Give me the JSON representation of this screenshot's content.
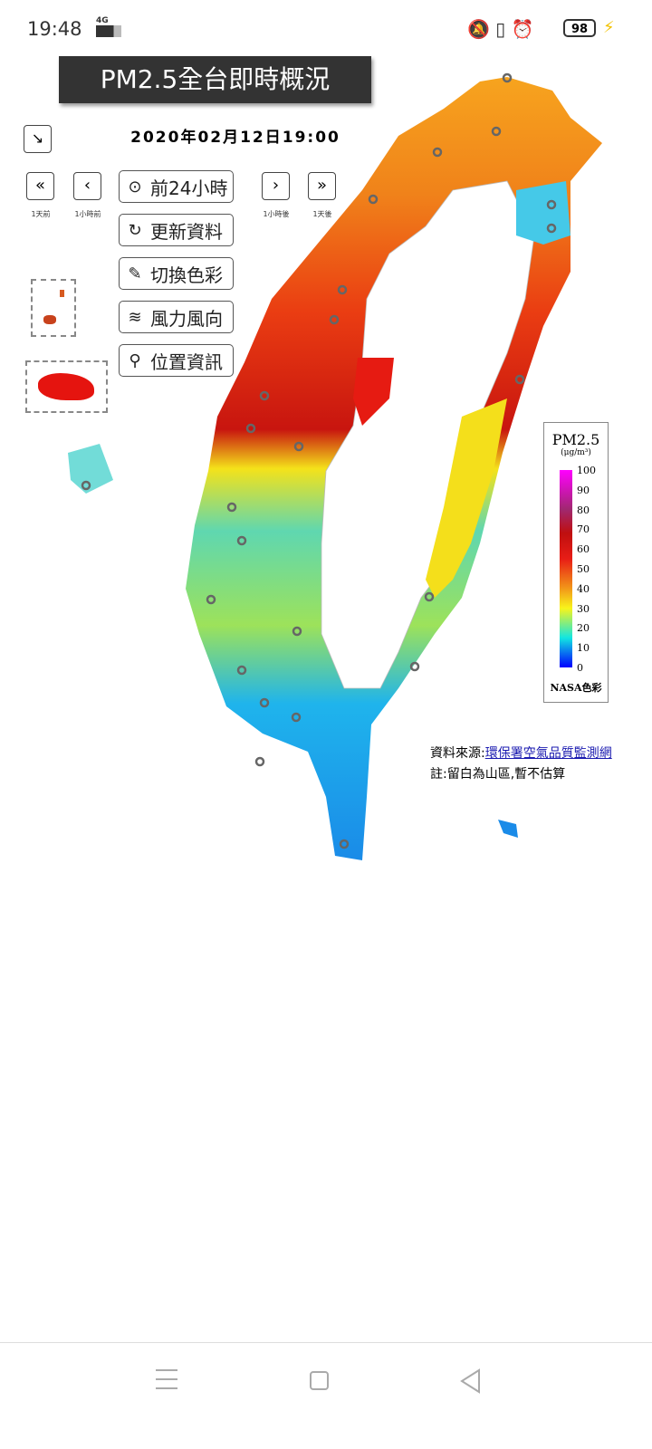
{
  "status_bar": {
    "time": "19:48",
    "network": "4G",
    "battery": "98"
  },
  "header": {
    "title": "PM2.5全台即時概況",
    "datetime": "2020年02月12日19:00"
  },
  "nav": {
    "day_back": "1天前",
    "hour_back": "1小時前",
    "hour_forward": "1小時後",
    "day_forward": "1天後"
  },
  "menu": [
    "前24小時",
    "更新資料",
    "切換色彩",
    "風力風向",
    "位置資訊"
  ],
  "legend": {
    "title": "PM2.5",
    "unit": "(μg/m³)",
    "ticks": [
      "100",
      "90",
      "80",
      "70",
      "60",
      "50",
      "40",
      "30",
      "20",
      "10",
      "0"
    ],
    "palette": "NASA色彩"
  },
  "footer": {
    "source_label": "資料來源:",
    "source_link": "環保署空氣品質監測網",
    "note": "註:留白為山區,暫不估算"
  }
}
